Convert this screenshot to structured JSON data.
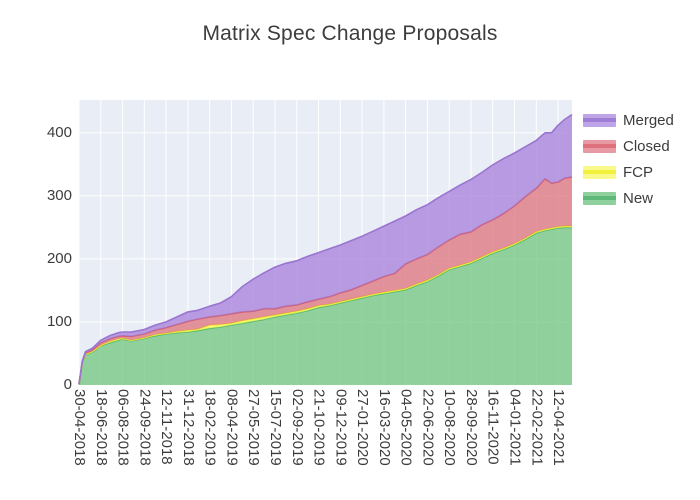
{
  "title": "Matrix Spec Change Proposals",
  "legend": {
    "items": [
      {
        "label": "Merged",
        "fill": "#bfa5e8",
        "line": "#9f7fd6"
      },
      {
        "label": "Closed",
        "fill": "#e89aa4",
        "line": "#df707e"
      },
      {
        "label": "FCP",
        "fill": "#fafa8c",
        "line": "#f1f13e"
      },
      {
        "label": "New",
        "fill": "#8fd09e",
        "line": "#5eb877"
      }
    ]
  },
  "chart_data": {
    "type": "area",
    "stacked": true,
    "title": "Matrix Spec Change Proposals",
    "xlabel": "",
    "ylabel": "",
    "grid": true,
    "legend_position": "right",
    "plot_bg": "#e9edf6",
    "grid_color": "#ffffff",
    "y_ticks": [
      0,
      100,
      200,
      300,
      400
    ],
    "y_max": 452,
    "x_tick_labels": [
      "30-04-2018",
      "18-06-2018",
      "06-08-2018",
      "24-09-2018",
      "12-11-2018",
      "31-12-2018",
      "18-02-2019",
      "08-04-2019",
      "27-05-2019",
      "15-07-2019",
      "02-09-2019",
      "21-10-2019",
      "09-12-2019",
      "27-01-2020",
      "16-03-2020",
      "04-05-2020",
      "22-06-2020",
      "10-08-2020",
      "28-09-2020",
      "16-11-2020",
      "04-01-2021",
      "22-02-2021",
      "12-04-2021"
    ],
    "x_end_index": 22.64,
    "x_index": [
      0,
      0.15,
      0.3,
      0.6,
      1,
      1.4,
      1.8,
      2,
      2.4,
      2.7,
      3,
      3.5,
      4,
      4.5,
      5,
      5.4,
      6,
      6.5,
      7,
      7.5,
      8,
      8.5,
      9,
      9.5,
      10,
      10.5,
      11,
      11.5,
      12,
      12.5,
      13,
      13.5,
      14,
      14.5,
      15,
      15.5,
      16,
      16.5,
      17,
      17.5,
      18,
      18.5,
      19,
      19.5,
      20,
      20.5,
      21,
      21.4,
      21.7,
      22,
      22.3,
      22.64
    ],
    "series": [
      {
        "name": "New",
        "fill": "#70c57f",
        "line": "#54b86d",
        "values": [
          1,
          35,
          48,
          52,
          62,
          67,
          71,
          73,
          70,
          72,
          74,
          78,
          81,
          83,
          84,
          86,
          90,
          92,
          95,
          98,
          101,
          104,
          108,
          111,
          114,
          118,
          123,
          126,
          130,
          134,
          138,
          142,
          145,
          148,
          151,
          158,
          164,
          173,
          183,
          188,
          193,
          201,
          209,
          215,
          222,
          231,
          241,
          245,
          247,
          249,
          250,
          250
        ]
      },
      {
        "name": "FCP",
        "fill": "#fdfc55",
        "line": "#eded2f",
        "values": [
          0,
          1,
          1,
          1,
          1,
          2,
          2,
          1,
          1,
          1,
          1,
          2,
          1,
          2,
          3,
          2,
          5,
          4,
          3,
          4,
          4,
          4,
          3,
          3,
          3,
          3,
          3,
          2,
          2,
          2,
          2,
          2,
          2,
          2,
          2,
          2,
          2,
          2,
          2,
          2,
          2,
          2,
          2,
          2,
          2,
          2,
          2,
          2,
          2,
          2,
          2,
          2
        ]
      },
      {
        "name": "Closed",
        "fill": "#de717b",
        "line": "#d05f72",
        "values": [
          0,
          1,
          2,
          2,
          4,
          4,
          4,
          4,
          6,
          6,
          6,
          7,
          9,
          11,
          14,
          16,
          13,
          14,
          15,
          14,
          12,
          13,
          10,
          11,
          10,
          11,
          10,
          12,
          14,
          15,
          18,
          21,
          25,
          27,
          39,
          40,
          41,
          44,
          45,
          49,
          48,
          51,
          51,
          55,
          60,
          66,
          69,
          80,
          71,
          71,
          76,
          78
        ]
      },
      {
        "name": "Merged",
        "fill": "#a57eda",
        "line": "#9a75d0",
        "values": [
          0,
          1,
          2,
          3,
          4,
          5,
          6,
          6,
          7,
          7,
          7,
          8,
          9,
          12,
          15,
          14,
          17,
          20,
          27,
          40,
          51,
          57,
          66,
          68,
          70,
          72,
          74,
          76,
          76,
          78,
          78,
          79,
          80,
          83,
          76,
          78,
          79,
          78,
          77,
          78,
          83,
          83,
          87,
          87,
          84,
          79,
          76,
          73,
          80,
          90,
          93,
          99
        ]
      }
    ]
  }
}
